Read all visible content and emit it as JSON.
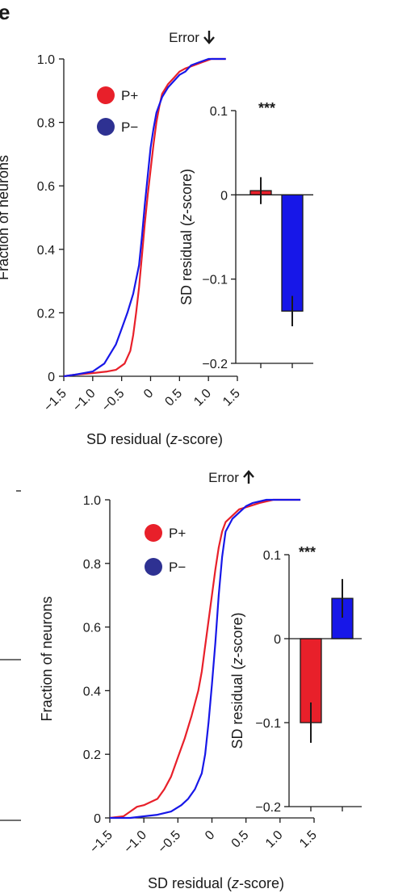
{
  "panel_letter": "e",
  "colors": {
    "p_plus": "#e8202a",
    "p_minus": "#1717e8",
    "p_minus_marker": "#2e3192"
  },
  "chart_data": [
    {
      "id": "top-cdf",
      "type": "line",
      "title": "Error",
      "title_arrow": "down",
      "xlabel_prefix": "SD residual (",
      "xlabel_italic": "z",
      "xlabel_suffix": "-score)",
      "ylabel": "Fraction of neurons",
      "xlim": [
        -1.5,
        1.5
      ],
      "ylim": [
        0,
        1.0
      ],
      "xticks": [
        -1.5,
        -1.0,
        -0.5,
        0,
        0.5,
        1.0,
        1.5
      ],
      "xtick_labels": [
        "−1.5",
        "−1.0",
        "−0.5",
        "0",
        "0.5",
        "1.0",
        "1.5"
      ],
      "yticks": [
        0,
        0.2,
        0.4,
        0.6,
        0.8,
        1.0
      ],
      "ytick_labels": [
        "0",
        "0.2",
        "0.4",
        "0.6",
        "0.8",
        "1.0"
      ],
      "legend": [
        "P+",
        "P−"
      ],
      "series": [
        {
          "name": "P+",
          "color": "#e8202a",
          "x": [
            -1.5,
            -1.3,
            -1.0,
            -0.75,
            -0.6,
            -0.45,
            -0.35,
            -0.3,
            -0.25,
            -0.2,
            -0.15,
            -0.1,
            -0.05,
            0,
            0.05,
            0.1,
            0.15,
            0.2,
            0.3,
            0.4,
            0.5,
            0.6,
            0.75,
            0.9,
            1.05,
            1.3
          ],
          "y": [
            0,
            0.005,
            0.01,
            0.015,
            0.02,
            0.04,
            0.08,
            0.13,
            0.2,
            0.28,
            0.38,
            0.48,
            0.57,
            0.65,
            0.73,
            0.8,
            0.85,
            0.89,
            0.92,
            0.94,
            0.96,
            0.97,
            0.98,
            0.99,
            1.0,
            1.0
          ]
        },
        {
          "name": "P−",
          "color": "#1717e8",
          "x": [
            -1.5,
            -1.3,
            -1.0,
            -0.8,
            -0.6,
            -0.5,
            -0.4,
            -0.3,
            -0.2,
            -0.15,
            -0.1,
            -0.05,
            0,
            0.05,
            0.1,
            0.2,
            0.3,
            0.4,
            0.5,
            0.6,
            0.7,
            0.85,
            1.0,
            1.3
          ],
          "y": [
            0,
            0.005,
            0.015,
            0.04,
            0.1,
            0.15,
            0.2,
            0.26,
            0.35,
            0.44,
            0.54,
            0.63,
            0.72,
            0.78,
            0.83,
            0.88,
            0.91,
            0.93,
            0.95,
            0.96,
            0.98,
            0.99,
            1.0,
            1.0
          ]
        }
      ]
    },
    {
      "id": "top-inset",
      "type": "bar",
      "ylabel_prefix": "SD residual (",
      "ylabel_italic": "z",
      "ylabel_suffix": "-score)",
      "ylim": [
        -0.2,
        0.1
      ],
      "yticks": [
        0.1,
        0,
        -0.1,
        -0.2
      ],
      "ytick_labels": [
        "0.1",
        "0",
        "−0.1",
        "−0.2"
      ],
      "significance": "***",
      "categories": [
        "P+",
        "P−"
      ],
      "values": [
        0.005,
        -0.138
      ],
      "errors": [
        0.016,
        0.018
      ]
    },
    {
      "id": "bottom-cdf",
      "type": "line",
      "title": "Error",
      "title_arrow": "up",
      "xlabel_prefix": "SD residual (",
      "xlabel_italic": "z",
      "xlabel_suffix": "-score)",
      "ylabel": "Fraction of neurons",
      "xlim": [
        -1.5,
        1.5
      ],
      "ylim": [
        0,
        1.0
      ],
      "xticks": [
        -1.5,
        -1.0,
        -0.5,
        0,
        0.5,
        1.0,
        1.5
      ],
      "xtick_labels": [
        "−1.5",
        "−1.0",
        "−0.5",
        "0",
        "0.5",
        "1.0",
        "1.5"
      ],
      "yticks": [
        0,
        0.2,
        0.4,
        0.6,
        0.8,
        1.0
      ],
      "ytick_labels": [
        "0",
        "0.2",
        "0.4",
        "0.6",
        "0.8",
        "1.0"
      ],
      "legend": [
        "P+",
        "P−"
      ],
      "series": [
        {
          "name": "P+",
          "color": "#e8202a",
          "x": [
            -1.5,
            -1.3,
            -1.2,
            -1.1,
            -1.0,
            -0.8,
            -0.7,
            -0.6,
            -0.5,
            -0.4,
            -0.3,
            -0.2,
            -0.15,
            -0.1,
            -0.05,
            0,
            0.05,
            0.1,
            0.15,
            0.2,
            0.3,
            0.4,
            0.55,
            0.7,
            0.9,
            1.1,
            1.3
          ],
          "y": [
            0,
            0.005,
            0.02,
            0.035,
            0.04,
            0.06,
            0.09,
            0.13,
            0.19,
            0.25,
            0.32,
            0.4,
            0.46,
            0.54,
            0.62,
            0.7,
            0.78,
            0.85,
            0.9,
            0.93,
            0.95,
            0.97,
            0.98,
            0.99,
            1.0,
            1.0,
            1.0
          ]
        },
        {
          "name": "P−",
          "color": "#1717e8",
          "x": [
            -1.5,
            -1.2,
            -1.0,
            -0.8,
            -0.6,
            -0.45,
            -0.35,
            -0.25,
            -0.15,
            -0.1,
            -0.05,
            0,
            0.05,
            0.1,
            0.15,
            0.2,
            0.3,
            0.4,
            0.5,
            0.6,
            0.8,
            1.0,
            1.3
          ],
          "y": [
            0,
            0,
            0.005,
            0.01,
            0.02,
            0.04,
            0.06,
            0.09,
            0.14,
            0.2,
            0.3,
            0.42,
            0.55,
            0.7,
            0.82,
            0.9,
            0.94,
            0.96,
            0.98,
            0.99,
            1.0,
            1.0,
            1.0
          ]
        }
      ]
    },
    {
      "id": "bottom-inset",
      "type": "bar",
      "ylabel_prefix": "SD residual (",
      "ylabel_italic": "z",
      "ylabel_suffix": "-score)",
      "ylim": [
        -0.2,
        0.1
      ],
      "yticks": [
        0.1,
        0,
        -0.1,
        -0.2
      ],
      "ytick_labels": [
        "0.1",
        "0",
        "−0.1",
        "−0.2"
      ],
      "significance": "***",
      "categories": [
        "P+",
        "P−"
      ],
      "values": [
        -0.1,
        0.048
      ],
      "errors": [
        0.024,
        0.023
      ]
    }
  ]
}
